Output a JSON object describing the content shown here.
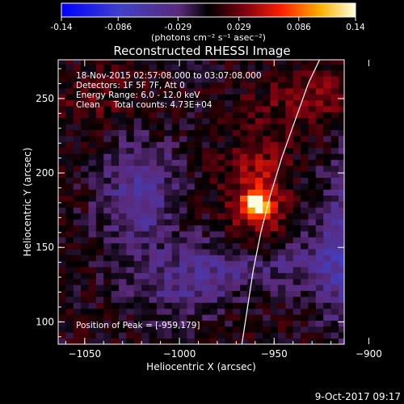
{
  "colorbar": {
    "ticks": [
      "-0.14",
      "-0.086",
      "-0.029",
      "0.029",
      "0.086",
      "0.14"
    ],
    "unit_label": "(photons cm⁻² s⁻¹ asec⁻²)",
    "min": -0.14,
    "max": 0.14
  },
  "chart_data": {
    "type": "heatmap",
    "title": "Reconstructed RHESSI Image",
    "xlabel": "Heliocentric X (arcsec)",
    "ylabel": "Heliocentric Y (arcsec)",
    "xlim": [
      -1064,
      -913
    ],
    "ylim": [
      85,
      276
    ],
    "xticks": [
      -1050,
      -1000,
      -950,
      -900
    ],
    "yticks": [
      100,
      150,
      200,
      250
    ],
    "info_lines": [
      "18-Nov-2015 02:57:08.000 to 03:07:08.000",
      "Detectors: 1F 5F 7F, Att 0",
      "Energy Range: 6.0 - 12.0 keV",
      "Clean     Total counts: 4.73E+04"
    ],
    "peak_label": "Position of Peak = [-959,179]",
    "peak": {
      "x": -959,
      "y": 179,
      "value": 0.14
    },
    "features": [
      {
        "x": -958,
        "y": 182,
        "value": 0.05,
        "sx": 12,
        "sy": 30
      },
      {
        "x": -1022,
        "y": 185,
        "value": -0.05,
        "sx": 14,
        "sy": 28
      },
      {
        "x": -962,
        "y": 138,
        "value": -0.045,
        "sx": 30,
        "sy": 14
      },
      {
        "x": -908,
        "y": 150,
        "value": -0.06,
        "sx": 14,
        "sy": 40
      },
      {
        "x": -1000,
        "y": 120,
        "value": -0.03,
        "sx": 16,
        "sy": 14
      },
      {
        "x": -930,
        "y": 250,
        "value": 0.03,
        "sx": 18,
        "sy": 14
      },
      {
        "x": -1040,
        "y": 250,
        "value": 0.02,
        "sx": 18,
        "sy": 14
      }
    ],
    "limb": [
      {
        "x": -967,
        "y": 85
      },
      {
        "x": -964,
        "y": 110
      },
      {
        "x": -961,
        "y": 135
      },
      {
        "x": -957,
        "y": 160
      },
      {
        "x": -952,
        "y": 185
      },
      {
        "x": -946,
        "y": 210
      },
      {
        "x": -939,
        "y": 235
      },
      {
        "x": -932,
        "y": 260
      },
      {
        "x": -926,
        "y": 276
      }
    ]
  },
  "timestamp": "9-Oct-2017 09:17"
}
